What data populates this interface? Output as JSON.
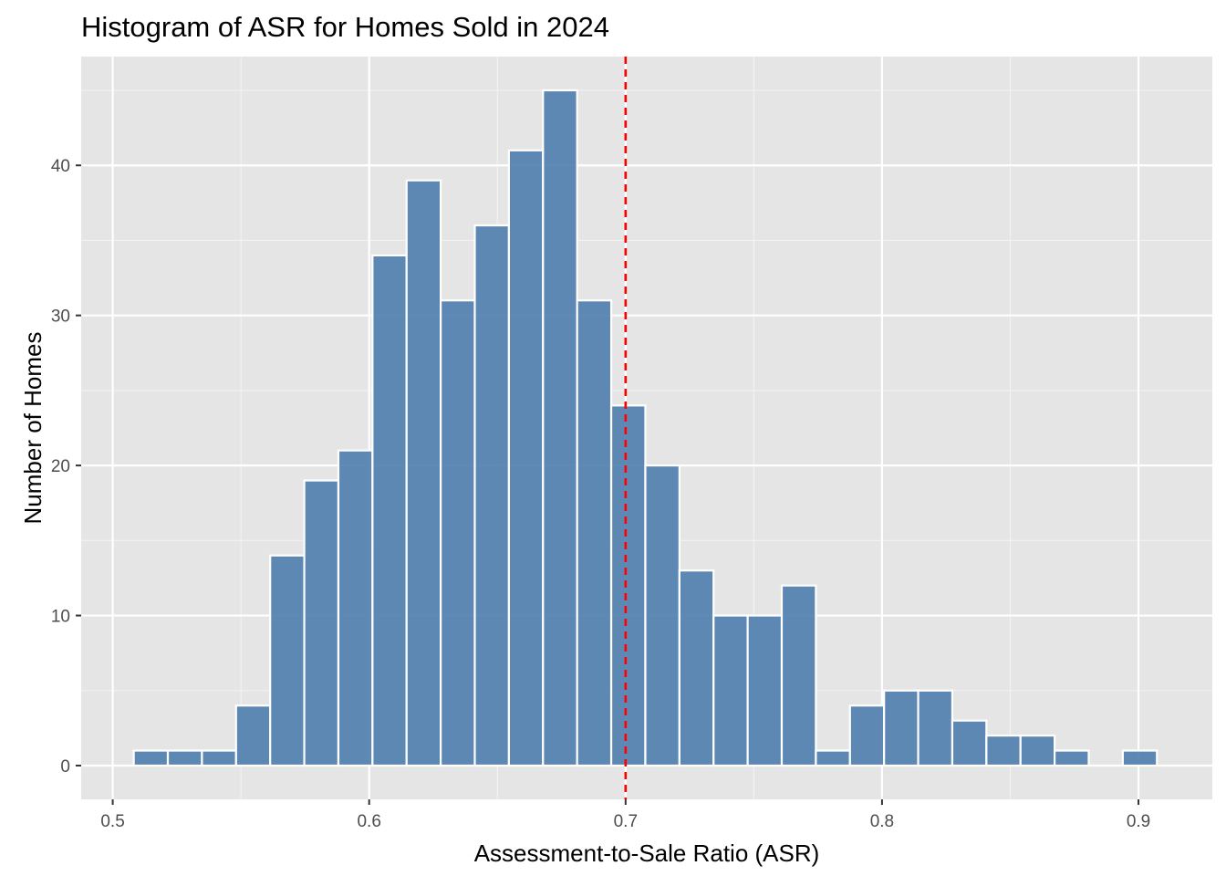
{
  "chart_data": {
    "type": "bar",
    "title": "Histogram of ASR for Homes Sold in 2024",
    "xlabel": "Assessment-to-Sale Ratio (ASR)",
    "ylabel": "Number of Homes",
    "xlim": [
      0.4877,
      0.9288
    ],
    "ylim": [
      -2.25,
      47.25
    ],
    "x_ticks": [
      0.5,
      0.6,
      0.7,
      0.8,
      0.9
    ],
    "x_tick_labels": [
      "0.5",
      "0.6",
      "0.7",
      "0.8",
      "0.9"
    ],
    "y_ticks": [
      0,
      10,
      20,
      30,
      40
    ],
    "y_tick_labels": [
      "0",
      "10",
      "20",
      "30",
      "40"
    ],
    "bin_width": 0.01333,
    "bins": [
      {
        "x_start": 0.5082,
        "x_end": 0.5215,
        "count": 1
      },
      {
        "x_start": 0.5215,
        "x_end": 0.5348,
        "count": 1
      },
      {
        "x_start": 0.5348,
        "x_end": 0.5481,
        "count": 1
      },
      {
        "x_start": 0.5481,
        "x_end": 0.5614,
        "count": 4
      },
      {
        "x_start": 0.5614,
        "x_end": 0.5747,
        "count": 14
      },
      {
        "x_start": 0.5747,
        "x_end": 0.588,
        "count": 19
      },
      {
        "x_start": 0.588,
        "x_end": 0.6013,
        "count": 21
      },
      {
        "x_start": 0.6013,
        "x_end": 0.6146,
        "count": 34
      },
      {
        "x_start": 0.6146,
        "x_end": 0.6279,
        "count": 39
      },
      {
        "x_start": 0.6279,
        "x_end": 0.6412,
        "count": 31
      },
      {
        "x_start": 0.6412,
        "x_end": 0.6545,
        "count": 36
      },
      {
        "x_start": 0.6545,
        "x_end": 0.6678,
        "count": 41
      },
      {
        "x_start": 0.6678,
        "x_end": 0.6811,
        "count": 45
      },
      {
        "x_start": 0.6811,
        "x_end": 0.6944,
        "count": 31
      },
      {
        "x_start": 0.6944,
        "x_end": 0.7077,
        "count": 24
      },
      {
        "x_start": 0.7077,
        "x_end": 0.721,
        "count": 20
      },
      {
        "x_start": 0.721,
        "x_end": 0.7343,
        "count": 13
      },
      {
        "x_start": 0.7343,
        "x_end": 0.7476,
        "count": 10
      },
      {
        "x_start": 0.7476,
        "x_end": 0.7609,
        "count": 10
      },
      {
        "x_start": 0.7609,
        "x_end": 0.7742,
        "count": 12
      },
      {
        "x_start": 0.7742,
        "x_end": 0.7875,
        "count": 1
      },
      {
        "x_start": 0.7875,
        "x_end": 0.8008,
        "count": 4
      },
      {
        "x_start": 0.8008,
        "x_end": 0.8141,
        "count": 5
      },
      {
        "x_start": 0.8141,
        "x_end": 0.8274,
        "count": 5
      },
      {
        "x_start": 0.8274,
        "x_end": 0.8407,
        "count": 3
      },
      {
        "x_start": 0.8407,
        "x_end": 0.854,
        "count": 2
      },
      {
        "x_start": 0.854,
        "x_end": 0.8673,
        "count": 2
      },
      {
        "x_start": 0.8673,
        "x_end": 0.8806,
        "count": 1
      },
      {
        "x_start": 0.8806,
        "x_end": 0.8939,
        "count": 0
      },
      {
        "x_start": 0.8939,
        "x_end": 0.9072,
        "count": 1
      }
    ],
    "reference_line": {
      "x": 0.7,
      "style": "dashed",
      "color": "#ff0000"
    },
    "grid": true,
    "colors": {
      "bar_fill": "#4f7dae",
      "bar_edge": "#ffffff",
      "panel_bg": "#e5e5e5",
      "grid_major": "#ffffff",
      "grid_minor": "#f2f2f2",
      "tick": "#333333"
    }
  }
}
